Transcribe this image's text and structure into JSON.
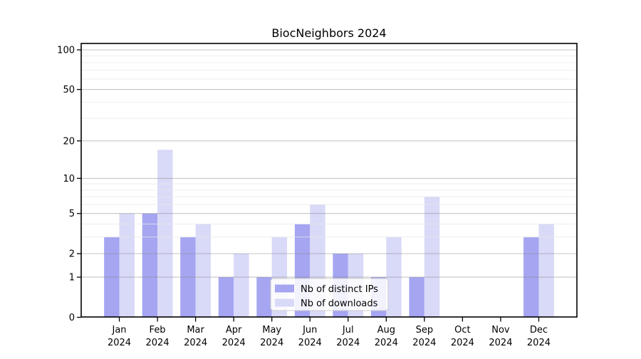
{
  "chart_data": {
    "type": "bar",
    "title": "BiocNeighbors 2024",
    "categories": [
      "Jan",
      "Feb",
      "Mar",
      "Apr",
      "May",
      "Jun",
      "Jul",
      "Aug",
      "Sep",
      "Oct",
      "Nov",
      "Dec"
    ],
    "category_second_line": "2024",
    "series": [
      {
        "name": "Nb of distinct IPs",
        "color": "#a5a5f2",
        "values": [
          3,
          5,
          3,
          1,
          1,
          4,
          2,
          1,
          1,
          0,
          0,
          3
        ]
      },
      {
        "name": "Nb of downloads",
        "color": "#d9d9f8",
        "values": [
          5,
          17,
          4,
          2,
          3,
          6,
          2,
          3,
          7,
          0,
          0,
          4
        ]
      }
    ],
    "xlabel": "",
    "ylabel": "",
    "y_scale": "log1p",
    "ylim": [
      0,
      100
    ],
    "y_major_ticks": [
      0,
      1,
      2,
      5,
      10,
      20,
      50,
      100
    ],
    "y_minor_gridlines": [
      3,
      4,
      6,
      7,
      8,
      9,
      30,
      40,
      60,
      70,
      80,
      90
    ],
    "grid": true,
    "legend_position": "lower center"
  },
  "colors": {
    "background": "#ffffff",
    "spine": "#000000",
    "major_grid": "rgba(140,140,140,0.5)",
    "minor_grid": "rgba(232,232,232,0.8)",
    "text": "#000000"
  }
}
